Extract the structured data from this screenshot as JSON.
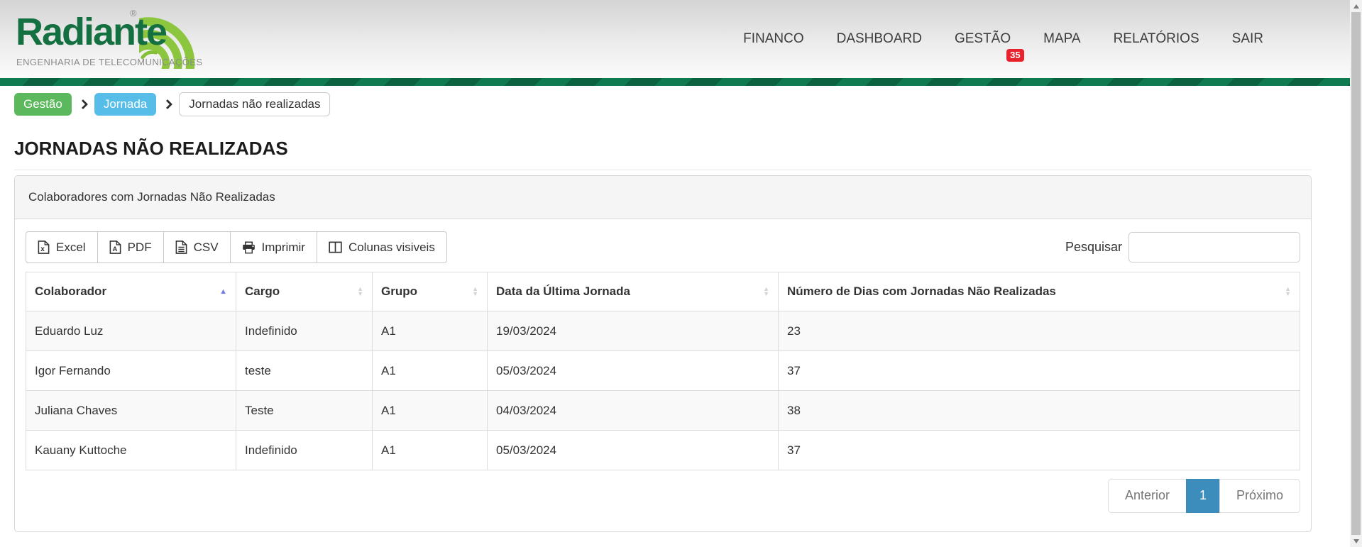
{
  "brand": {
    "name": "Radiante",
    "registered_mark": "®",
    "tagline": "ENGENHARIA DE TELECOMUNICAÇÕES"
  },
  "nav": [
    {
      "label": "FINANCO"
    },
    {
      "label": "DASHBOARD"
    },
    {
      "label": "GESTÃO",
      "badge": "35"
    },
    {
      "label": "MAPA"
    },
    {
      "label": "RELATÓRIOS"
    },
    {
      "label": "SAIR"
    }
  ],
  "breadcrumb": [
    {
      "label": "Gestão",
      "style": "green"
    },
    {
      "label": "Jornada",
      "style": "blue"
    },
    {
      "label": "Jornadas não realizadas",
      "style": "white"
    }
  ],
  "page_title": "JORNADAS NÃO REALIZADAS",
  "panel_heading": "Colaboradores com Jornadas Não Realizadas",
  "toolbar": {
    "export_buttons": [
      {
        "label": "Excel",
        "icon": "excel-file-icon"
      },
      {
        "label": "PDF",
        "icon": "pdf-file-icon"
      },
      {
        "label": "CSV",
        "icon": "csv-file-icon"
      },
      {
        "label": "Imprimir",
        "icon": "printer-icon"
      },
      {
        "label": "Colunas visiveis",
        "icon": "columns-icon"
      }
    ],
    "search_label": "Pesquisar",
    "search_value": ""
  },
  "table": {
    "columns": [
      {
        "label": "Colaborador",
        "sort": "asc"
      },
      {
        "label": "Cargo",
        "sort": "none"
      },
      {
        "label": "Grupo",
        "sort": "none"
      },
      {
        "label": "Data da Última Jornada",
        "sort": "none"
      },
      {
        "label": "Número de Dias com Jornadas Não Realizadas",
        "sort": "none"
      }
    ],
    "rows": [
      {
        "colaborador": "Eduardo Luz",
        "cargo": "Indefinido",
        "grupo": "A1",
        "data_ultima_jornada": "19/03/2024",
        "dias": "23"
      },
      {
        "colaborador": "Igor Fernando",
        "cargo": "teste",
        "grupo": "A1",
        "data_ultima_jornada": "05/03/2024",
        "dias": "37"
      },
      {
        "colaborador": "Juliana Chaves",
        "cargo": "Teste",
        "grupo": "A1",
        "data_ultima_jornada": "04/03/2024",
        "dias": "38"
      },
      {
        "colaborador": "Kauany Kuttoche",
        "cargo": "Indefinido",
        "grupo": "A1",
        "data_ultima_jornada": "05/03/2024",
        "dias": "37"
      }
    ]
  },
  "pagination": {
    "previous_label": "Anterior",
    "current_page": "1",
    "next_label": "Próximo"
  },
  "colors": {
    "accent_green": "#0f7a50",
    "badge_red": "#e8212d",
    "crumb_green": "#5cb85c",
    "crumb_blue": "#56bce8",
    "active_page_blue": "#3c8dbc",
    "sort_active_arrow": "#767de6",
    "logo_dark_green": "#157041",
    "logo_lime": "#8cc63e"
  }
}
